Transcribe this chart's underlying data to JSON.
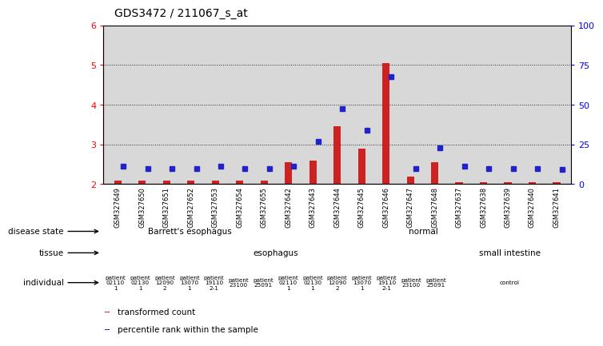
{
  "title": "GDS3472 / 211067_s_at",
  "samples": [
    "GSM327649",
    "GSM327650",
    "GSM327651",
    "GSM327652",
    "GSM327653",
    "GSM327654",
    "GSM327655",
    "GSM327642",
    "GSM327643",
    "GSM327644",
    "GSM327645",
    "GSM327646",
    "GSM327647",
    "GSM327648",
    "GSM327637",
    "GSM327638",
    "GSM327639",
    "GSM327640",
    "GSM327641"
  ],
  "red_values": [
    2.1,
    2.1,
    2.1,
    2.1,
    2.1,
    2.1,
    2.1,
    2.55,
    2.6,
    3.45,
    2.9,
    5.05,
    2.2,
    2.55,
    2.05,
    2.05,
    2.05,
    2.05,
    2.05
  ],
  "blue_values": [
    2.45,
    2.4,
    2.4,
    2.4,
    2.45,
    2.4,
    2.4,
    2.45,
    3.08,
    3.9,
    3.35,
    4.7,
    2.4,
    2.92,
    2.45,
    2.4,
    2.4,
    2.4,
    2.38
  ],
  "ylim_left": [
    2.0,
    6.0
  ],
  "yticks_left": [
    2,
    3,
    4,
    5,
    6
  ],
  "yticks_right": [
    0,
    25,
    50,
    75,
    100
  ],
  "disease_groups": [
    {
      "label": "Barrett's esophagus",
      "start": 0,
      "end": 7,
      "color": "#90ee90"
    },
    {
      "label": "normal",
      "start": 7,
      "end": 19,
      "color": "#3cb371"
    }
  ],
  "tissue_groups": [
    {
      "label": "esophagus",
      "start": 0,
      "end": 14,
      "color": "#b0b0dd"
    },
    {
      "label": "small intestine",
      "start": 14,
      "end": 19,
      "color": "#7070cc"
    }
  ],
  "individual_groups": [
    {
      "label": "patient\n02110\n1",
      "start": 0,
      "end": 1,
      "color": "#f08080"
    },
    {
      "label": "patient\n02130\n1",
      "start": 1,
      "end": 2,
      "color": "#f08080"
    },
    {
      "label": "patient\n12090\n2",
      "start": 2,
      "end": 3,
      "color": "#f08080"
    },
    {
      "label": "patient\n13070\n1",
      "start": 3,
      "end": 4,
      "color": "#f08080"
    },
    {
      "label": "patient\n19110\n2-1",
      "start": 4,
      "end": 5,
      "color": "#f08080"
    },
    {
      "label": "patient\n23100",
      "start": 5,
      "end": 6,
      "color": "#f4b0b0"
    },
    {
      "label": "patient\n25091",
      "start": 6,
      "end": 7,
      "color": "#f4b0b0"
    },
    {
      "label": "patient\n02110\n1",
      "start": 7,
      "end": 8,
      "color": "#f08080"
    },
    {
      "label": "patient\n02130\n1",
      "start": 8,
      "end": 9,
      "color": "#f08080"
    },
    {
      "label": "patient\n12090\n2",
      "start": 9,
      "end": 10,
      "color": "#f08080"
    },
    {
      "label": "patient\n13070\n1",
      "start": 10,
      "end": 11,
      "color": "#f08080"
    },
    {
      "label": "patient\n19110\n2-1",
      "start": 11,
      "end": 12,
      "color": "#f08080"
    },
    {
      "label": "patient\n23100",
      "start": 12,
      "end": 13,
      "color": "#f4b0b0"
    },
    {
      "label": "patient\n25091",
      "start": 13,
      "end": 14,
      "color": "#f4b0b0"
    },
    {
      "label": "control",
      "start": 14,
      "end": 19,
      "color": "#fdd8d8"
    }
  ],
  "row_labels": [
    "disease state",
    "tissue",
    "individual"
  ],
  "legend_items": [
    {
      "color": "#cc2222",
      "label": "transformed count"
    },
    {
      "color": "#2222cc",
      "label": "percentile rank within the sample"
    }
  ],
  "bar_color": "#cc2222",
  "dot_color": "#2222cc",
  "background_color": "#ffffff",
  "plot_bg": "#d8d8d8"
}
